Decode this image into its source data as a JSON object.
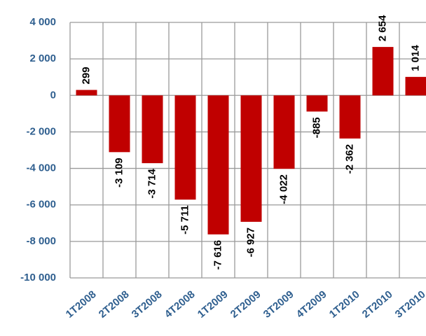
{
  "chart_data": {
    "type": "bar",
    "categories": [
      "1T2008",
      "2T2008",
      "3T2008",
      "4T2008",
      "1T2009",
      "2T2009",
      "3T2009",
      "4T2009",
      "1T2010",
      "2T2010",
      "3T2010"
    ],
    "values": [
      299,
      -3109,
      -3714,
      -5711,
      -7616,
      -6927,
      -4022,
      -885,
      -2362,
      2654,
      1014
    ],
    "value_labels": [
      "299",
      "-3 109",
      "-3 714",
      "-5 711",
      "-7 616",
      "-6 927",
      "-4 022",
      "-885",
      "-2 362",
      "2 654",
      "1 014"
    ],
    "color": "#c00000",
    "ylim": [
      -10000,
      4000
    ],
    "yticks": [
      {
        "value": 4000,
        "label": "4 000"
      },
      {
        "value": 2000,
        "label": "2 000"
      },
      0,
      {
        "value": -2000,
        "label": "-2 000"
      },
      {
        "value": -4000,
        "label": "-4 000"
      },
      {
        "value": -6000,
        "label": "-6 000"
      },
      {
        "value": -8000,
        "label": "-8 000"
      },
      {
        "value": -10000,
        "label": "-10 000"
      }
    ],
    "grid": true
  }
}
